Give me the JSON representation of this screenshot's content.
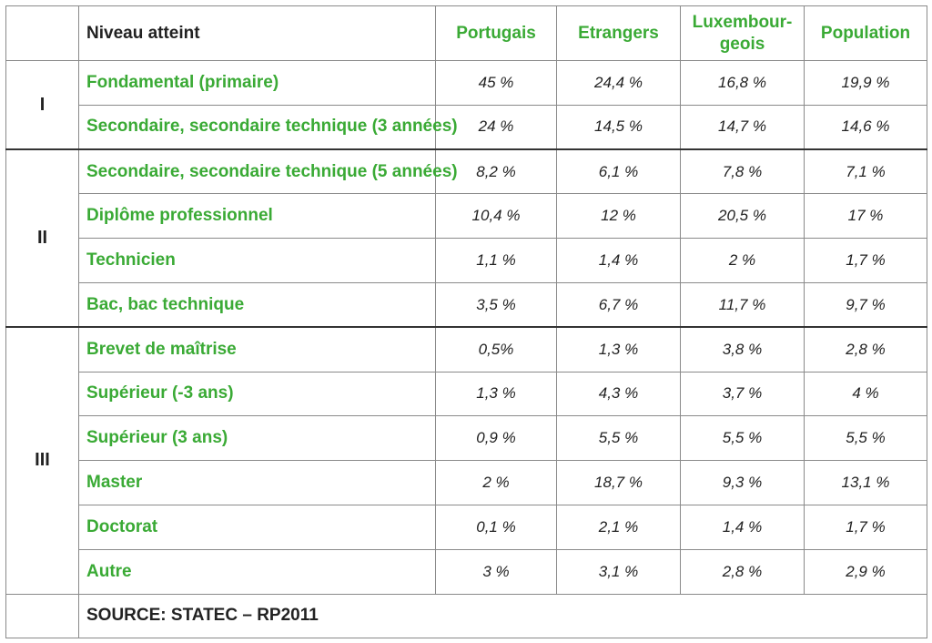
{
  "header": {
    "col_level": "Niveau atteint",
    "columns": [
      "Portugais",
      "Etrangers",
      "Luxembour-geois",
      "Population"
    ]
  },
  "groups": [
    {
      "level": "I",
      "rows": [
        {
          "label": "Fondamental (primaire)",
          "values": [
            "45 %",
            "24,4 %",
            "16,8 %",
            "19,9 %"
          ]
        },
        {
          "label": "Secondaire, secondaire technique (3 années)",
          "values": [
            "24 %",
            "14,5 %",
            "14,7 %",
            "14,6 %"
          ]
        }
      ]
    },
    {
      "level": "II",
      "rows": [
        {
          "label": "Secondaire, secondaire technique (5 années)",
          "values": [
            "8,2 %",
            "6,1 %",
            "7,8 %",
            "7,1 %"
          ]
        },
        {
          "label": "Diplôme professionnel",
          "values": [
            "10,4 %",
            "12 %",
            "20,5 %",
            "17 %"
          ]
        },
        {
          "label": "Technicien",
          "values": [
            "1,1 %",
            "1,4 %",
            "2 %",
            "1,7 %"
          ]
        },
        {
          "label": "Bac, bac technique",
          "values": [
            "3,5 %",
            "6,7 %",
            "11,7 %",
            "9,7 %"
          ]
        }
      ]
    },
    {
      "level": "III",
      "rows": [
        {
          "label": "Brevet de maîtrise",
          "values": [
            "0,5%",
            "1,3 %",
            "3,8 %",
            "2,8 %"
          ]
        },
        {
          "label": "Supérieur (-3 ans)",
          "values": [
            "1,3 %",
            "4,3 %",
            "3,7 %",
            "4 %"
          ]
        },
        {
          "label": "Supérieur (3 ans)",
          "values": [
            "0,9 %",
            "5,5 %",
            "5,5 %",
            "5,5 %"
          ]
        },
        {
          "label": "Master",
          "values": [
            "2 %",
            "18,7 %",
            "9,3 %",
            "13,1 %"
          ]
        },
        {
          "label": "Doctorat",
          "values": [
            "0,1 %",
            "2,1 %",
            "1,4 %",
            "1,7 %"
          ]
        },
        {
          "label": "Autre",
          "values": [
            "3 %",
            "3,1 %",
            "2,8 %",
            "2,9 %"
          ]
        }
      ]
    }
  ],
  "source": "SOURCE: STATEC – RP2011",
  "colors": {
    "label_green": "#3aaa35",
    "text": "#222222",
    "border": "#8a8a8a"
  }
}
